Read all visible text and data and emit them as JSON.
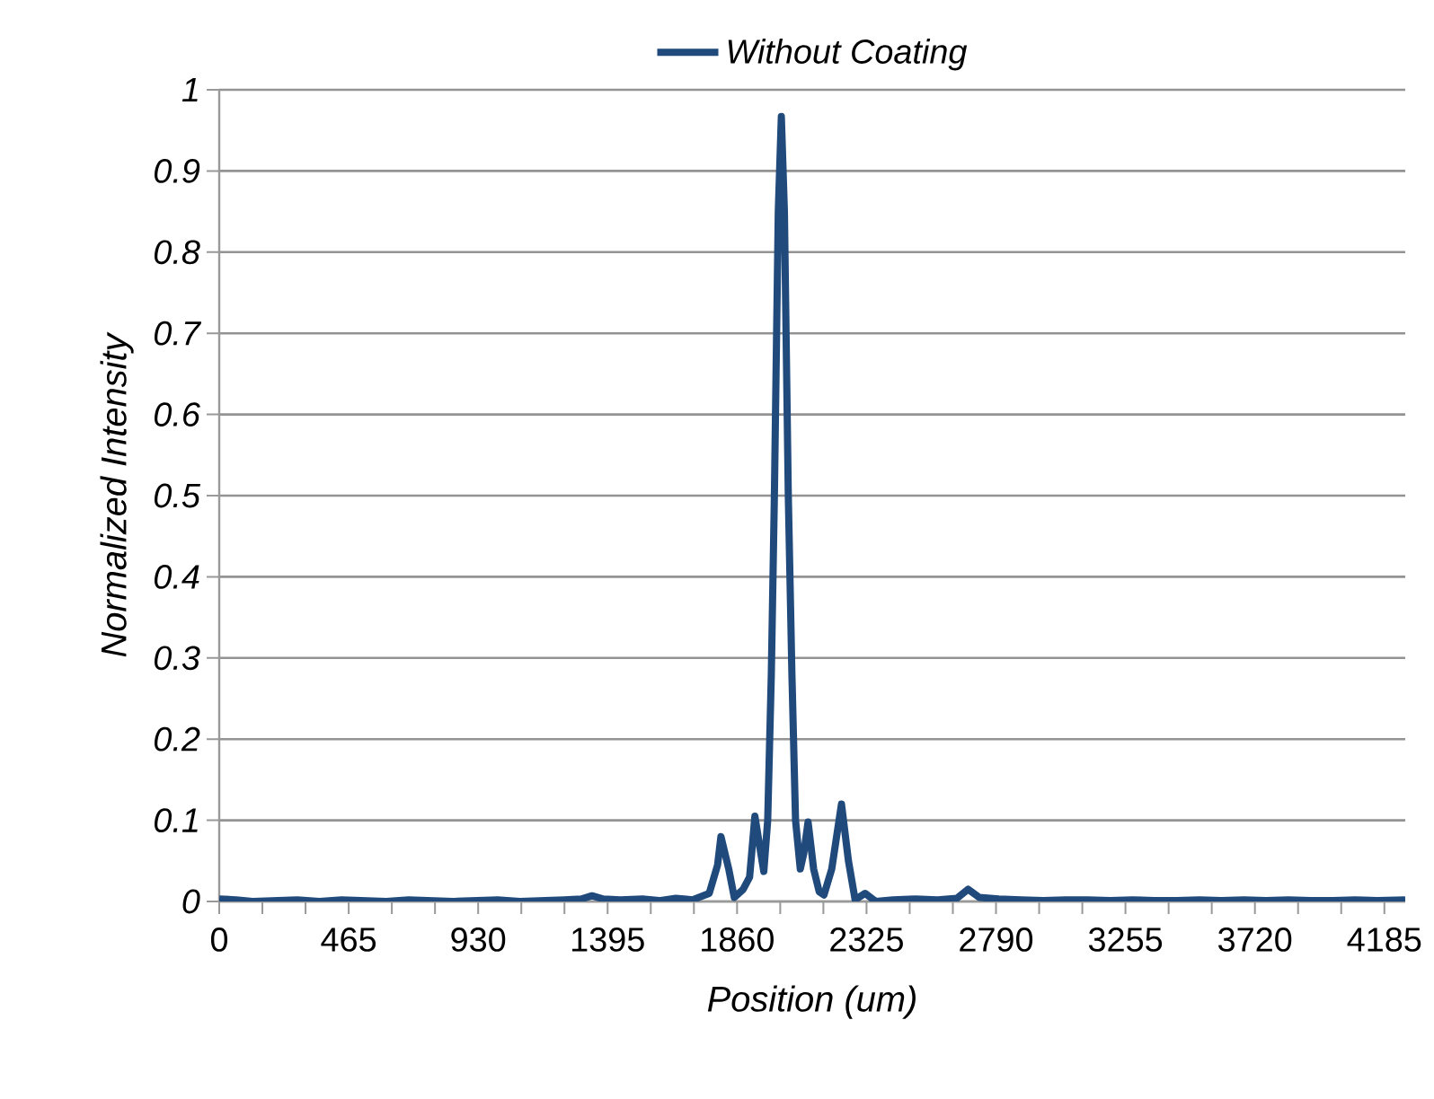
{
  "chart_data": {
    "type": "line",
    "xlabel": "Position (um)",
    "ylabel": "Normalized Intensity",
    "x": [
      0,
      60,
      120,
      200,
      280,
      360,
      440,
      520,
      600,
      680,
      760,
      840,
      920,
      1000,
      1080,
      1160,
      1240,
      1300,
      1339,
      1380,
      1440,
      1520,
      1580,
      1640,
      1700,
      1760,
      1790,
      1802,
      1830,
      1850,
      1882,
      1905,
      1924,
      1945,
      1956,
      1970,
      1983,
      1994,
      2008,
      2019,
      2030,
      2044,
      2057,
      2070,
      2087,
      2100,
      2115,
      2135,
      2155,
      2172,
      2200,
      2235,
      2260,
      2284,
      2320,
      2358,
      2420,
      2500,
      2580,
      2650,
      2690,
      2730,
      2800,
      2880,
      2960,
      3040,
      3120,
      3200,
      3280,
      3360,
      3440,
      3520,
      3600,
      3680,
      3760,
      3840,
      3920,
      4000,
      4080,
      4160,
      4260
    ],
    "series": [
      {
        "name": "Without Coating",
        "color": "#214a7c",
        "values": [
          0.003,
          0.002,
          0,
          0.001,
          0.002,
          0,
          0.002,
          0.001,
          0,
          0.002,
          0.001,
          0,
          0.001,
          0.002,
          0,
          0.001,
          0.002,
          0.003,
          0.007,
          0.003,
          0.002,
          0.003,
          0.001,
          0.004,
          0.002,
          0.01,
          0.045,
          0.08,
          0.04,
          0.005,
          0.015,
          0.03,
          0.105,
          0.06,
          0.037,
          0.1,
          0.28,
          0.5,
          0.85,
          0.967,
          0.85,
          0.5,
          0.28,
          0.1,
          0.04,
          0.06,
          0.098,
          0.04,
          0.012,
          0.008,
          0.04,
          0.12,
          0.05,
          0.002,
          0.01,
          0,
          0.002,
          0.003,
          0.002,
          0.004,
          0.015,
          0.005,
          0.003,
          0.002,
          0.001,
          0.002,
          0.002,
          0.001,
          0.002,
          0.001,
          0.001,
          0.002,
          0.001,
          0.002,
          0.001,
          0.002,
          0.001,
          0.001,
          0.002,
          0.001,
          0.002
        ]
      }
    ],
    "xlim": [
      0,
      4260
    ],
    "ylim": [
      0,
      1
    ],
    "xticks": [
      0,
      {
        "value": 155,
        "label": null
      },
      {
        "value": 310,
        "label": null
      },
      465,
      {
        "value": 620,
        "label": null
      },
      {
        "value": 775,
        "label": null
      },
      930,
      {
        "value": 1085,
        "label": null
      },
      {
        "value": 1240,
        "label": null
      },
      1395,
      {
        "value": 1550,
        "label": null
      },
      {
        "value": 1705,
        "label": null
      },
      1860,
      {
        "value": 2015,
        "label": null
      },
      {
        "value": 2170,
        "label": null
      },
      2325,
      {
        "value": 2480,
        "label": null
      },
      {
        "value": 2635,
        "label": null
      },
      2790,
      {
        "value": 2945,
        "label": null
      },
      {
        "value": 3100,
        "label": null
      },
      3255,
      {
        "value": 3410,
        "label": null
      },
      {
        "value": 3565,
        "label": null
      },
      3720,
      {
        "value": 3875,
        "label": null
      },
      {
        "value": 4030,
        "label": null
      },
      4185
    ],
    "yticks": [
      0,
      0.1,
      0.2,
      0.3,
      0.4,
      0.5,
      0.6,
      0.7,
      0.8,
      0.9,
      1
    ],
    "grid": "y",
    "legend": "top",
    "marker": "none",
    "line_style": "solid"
  }
}
